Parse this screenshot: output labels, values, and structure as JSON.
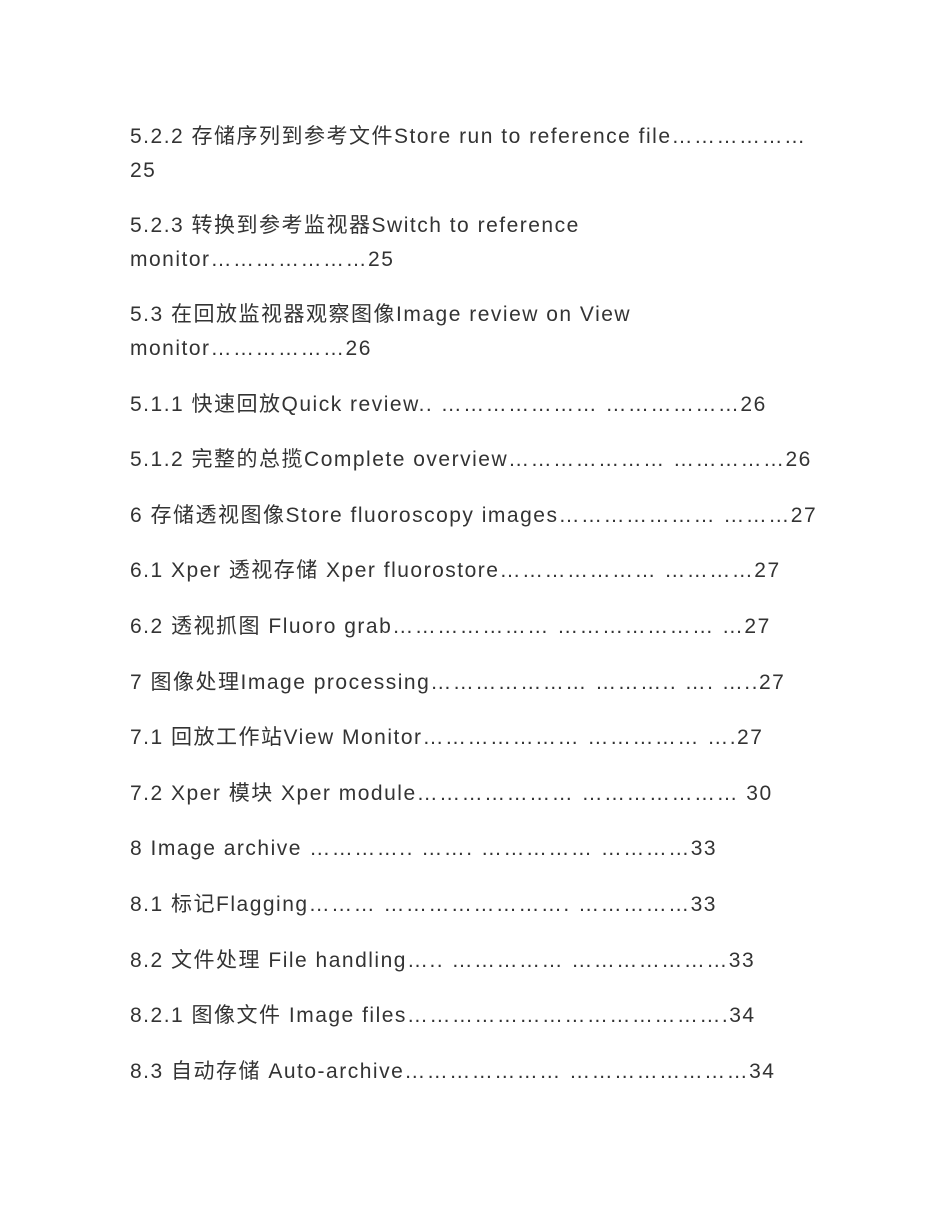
{
  "entries": [
    "5.2.2 存储序列到参考文件Store run to reference file………………25",
    "5.2.3 转换到参考监视器Switch to reference monitor…………………25",
    "5.3 在回放监视器观察图像Image review on View monitor………………26",
    "5.1.1 快速回放Quick review.. ………………… ………………26",
    "5.1.2 完整的总揽Complete overview………………… ……………26",
    "6 存储透视图像Store fluoroscopy images………………… ………27",
    "6.1 Xper 透视存储 Xper fluorostore………………… …………27",
    "6.2 透视抓图 Fluoro grab………………… ………………… …27",
    "7 图像处理Image processing………………… ……….. …. …..27",
    "7.1 回放工作站View Monitor………………… …………… ….27",
    "7.2 Xper 模块 Xper module………………… ………………… 30",
    "8 Image archive ………….. ……. …………… …………33",
    "8.1 标记Flagging……… ……………………. ……………33",
    "8.2 文件处理 File handling….. …………… …………………33",
    "8.2.1 图像文件 Image files…………………………………….34",
    "8.3 自动存储 Auto-archive………………… ……………………34"
  ]
}
